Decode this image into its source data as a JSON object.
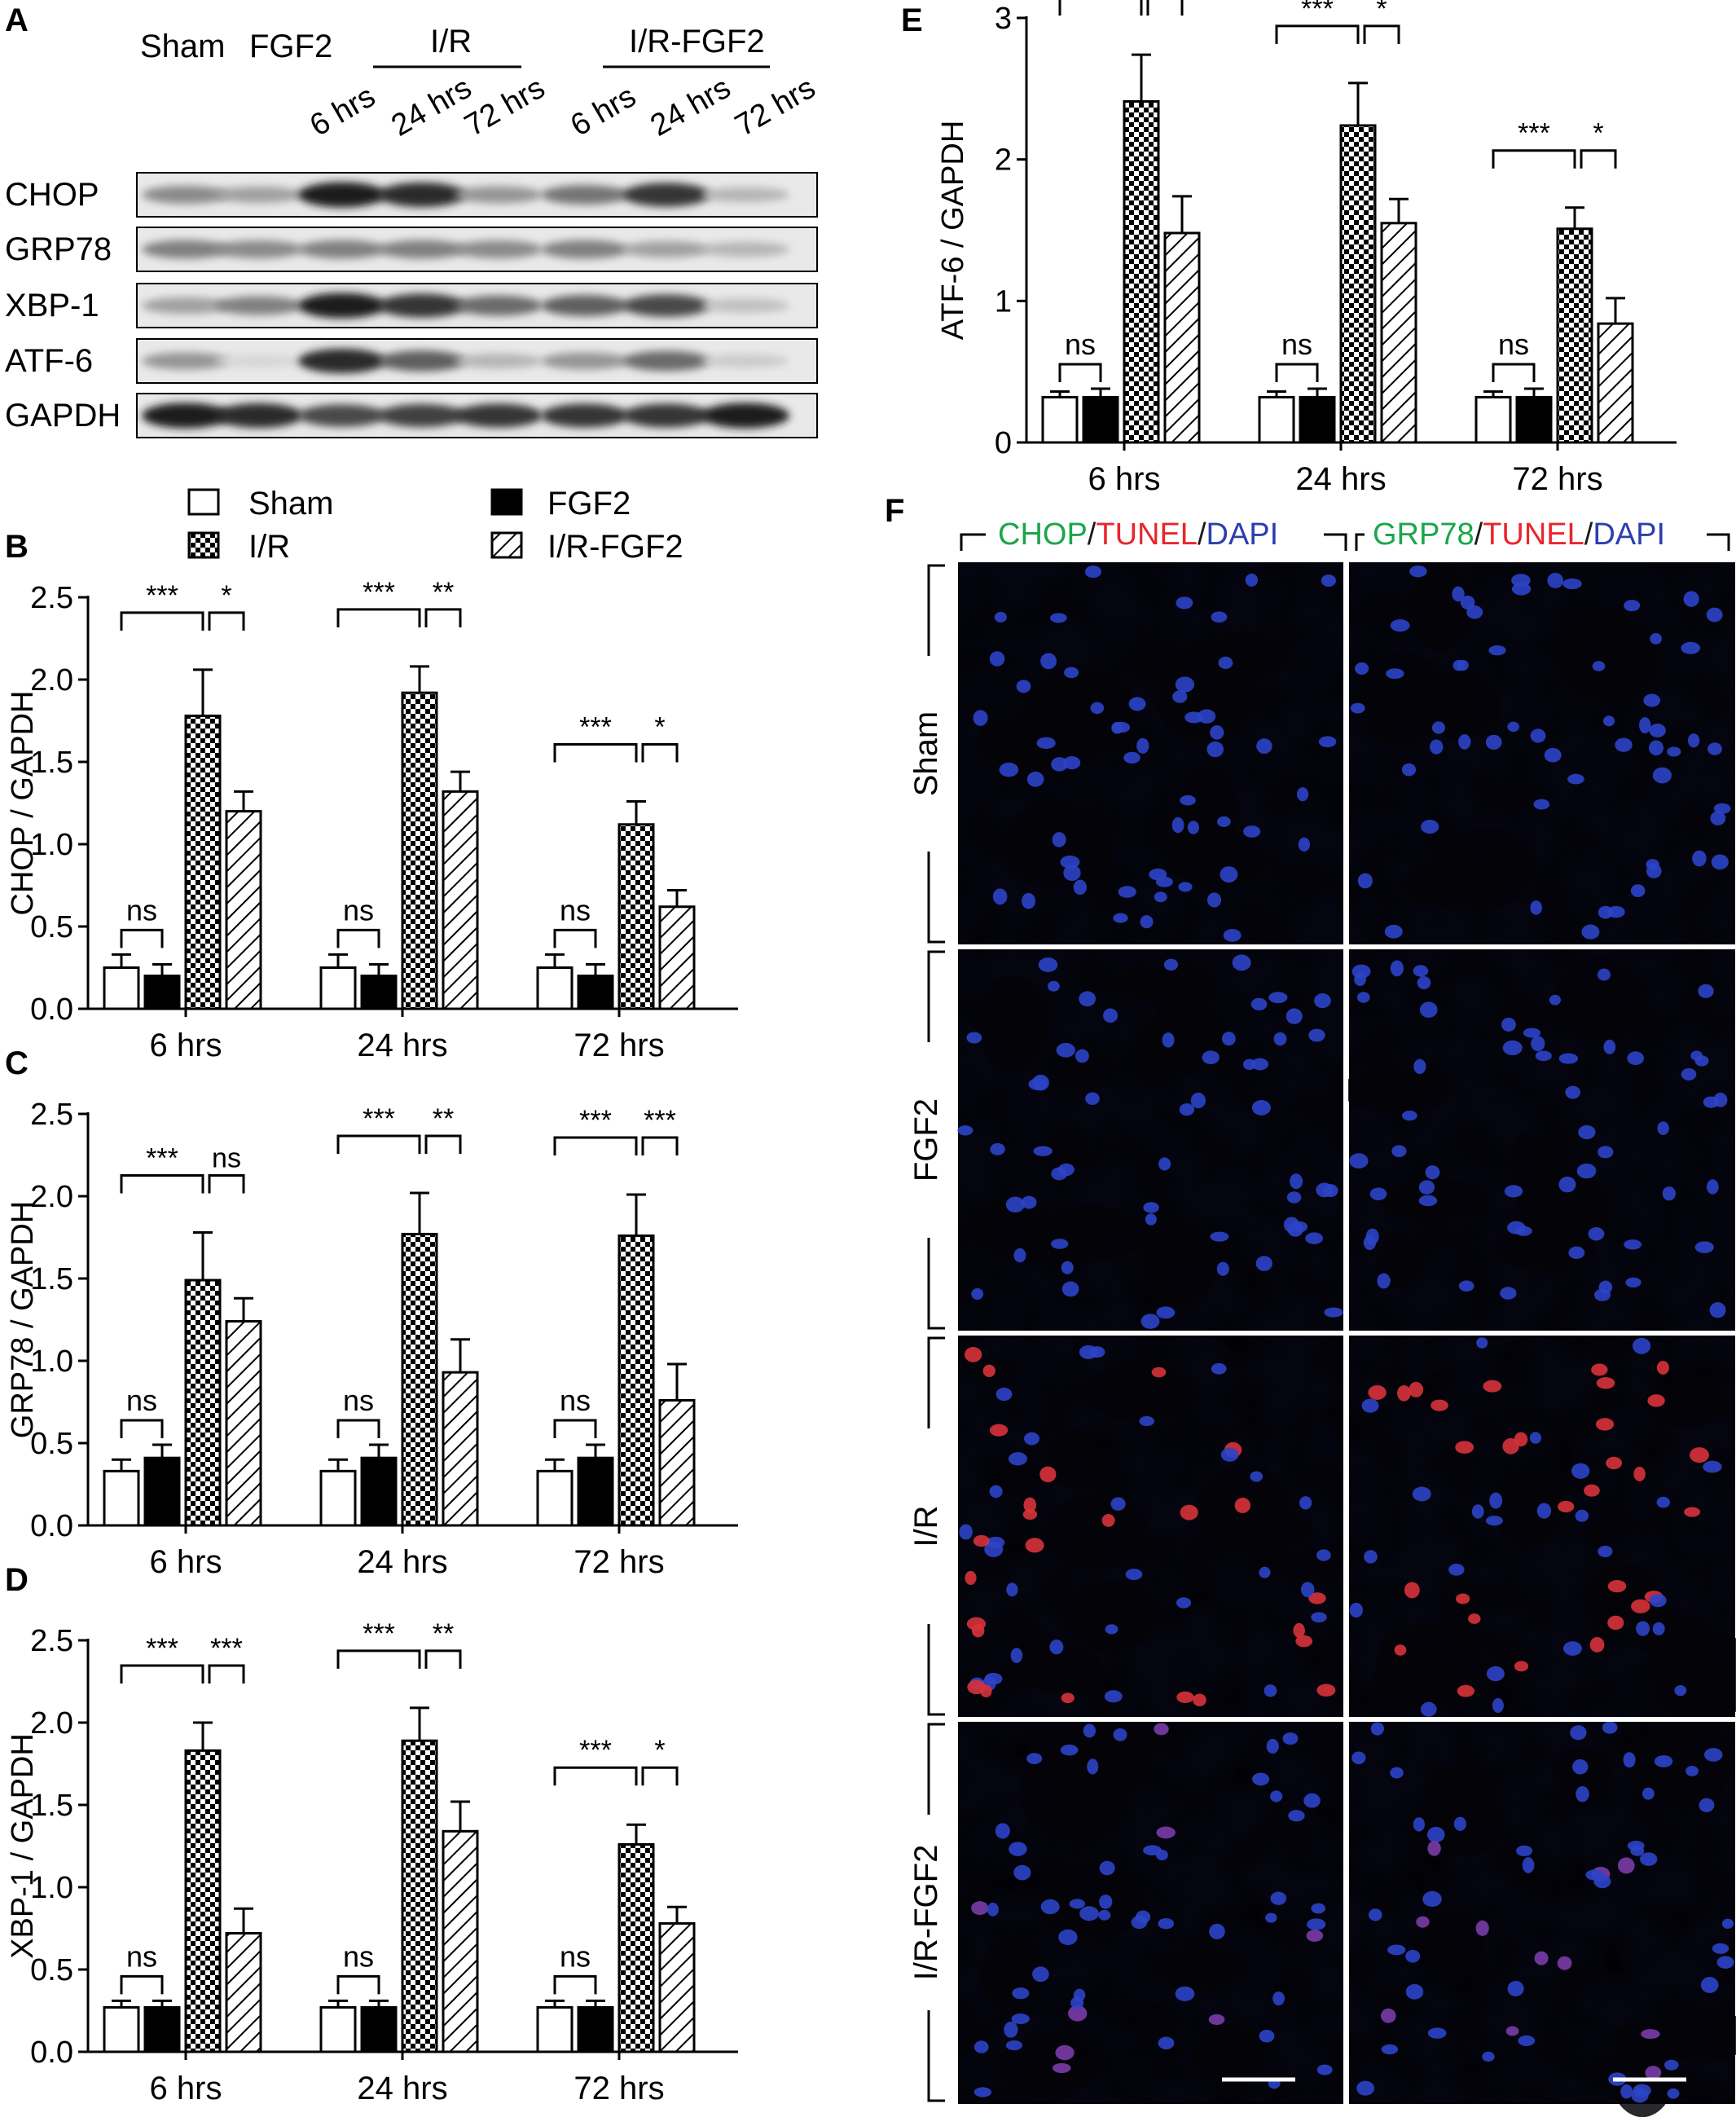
{
  "panel_a": {
    "letter": "A",
    "lane_labels_top": [
      "Sham",
      "FGF2"
    ],
    "group_labels": [
      "I/R",
      "I/R-FGF2"
    ],
    "time_labels": [
      "6 hrs",
      "24 hrs",
      "72 hrs",
      "6 hrs",
      "24 hrs",
      "72 hrs"
    ],
    "rows": [
      {
        "name": "CHOP",
        "intensity": [
          0.45,
          0.35,
          0.95,
          0.9,
          0.4,
          0.55,
          0.85,
          0.25
        ]
      },
      {
        "name": "GRP78",
        "intensity": [
          0.5,
          0.45,
          0.5,
          0.5,
          0.45,
          0.5,
          0.35,
          0.25
        ]
      },
      {
        "name": "XBP-1",
        "intensity": [
          0.35,
          0.5,
          0.95,
          0.85,
          0.6,
          0.65,
          0.75,
          0.2
        ]
      },
      {
        "name": "ATF-6",
        "intensity": [
          0.4,
          0.1,
          0.9,
          0.65,
          0.25,
          0.4,
          0.6,
          0.15
        ]
      },
      {
        "name": "GAPDH",
        "intensity": [
          0.95,
          0.9,
          0.75,
          0.8,
          0.85,
          0.85,
          0.85,
          0.95
        ]
      }
    ]
  },
  "legend": {
    "items": [
      {
        "label": "Sham",
        "pattern": "white"
      },
      {
        "label": "I/R",
        "pattern": "checker"
      },
      {
        "label": "FGF2",
        "pattern": "black"
      },
      {
        "label": "I/R-FGF2",
        "pattern": "hatch"
      }
    ]
  },
  "chart_data": [
    {
      "panel": "B",
      "type": "bar",
      "ylabel": "CHOP / GAPDH",
      "ylim": [
        0,
        2.5
      ],
      "yticks": [
        "0.0",
        "0.5",
        "1.0",
        "1.5",
        "2.0",
        "2.5"
      ],
      "categories": [
        "6 hrs",
        "24 hrs",
        "72 hrs"
      ],
      "series": [
        {
          "name": "Sham",
          "values": [
            0.25,
            0.25,
            0.25
          ],
          "err": [
            0.08,
            0.08,
            0.08
          ]
        },
        {
          "name": "FGF2",
          "values": [
            0.2,
            0.2,
            0.2
          ],
          "err": [
            0.07,
            0.07,
            0.07
          ]
        },
        {
          "name": "I/R",
          "values": [
            1.78,
            1.92,
            1.12
          ],
          "err": [
            0.28,
            0.16,
            0.14
          ]
        },
        {
          "name": "I/R-FGF2",
          "values": [
            1.2,
            1.32,
            0.62
          ],
          "err": [
            0.12,
            0.12,
            0.1
          ]
        }
      ],
      "significance": [
        [
          "ns",
          "***",
          "*"
        ],
        [
          "ns",
          "***",
          "**"
        ],
        [
          "ns",
          "***",
          "*"
        ]
      ]
    },
    {
      "panel": "C",
      "type": "bar",
      "ylabel": "GRP78 / GAPDH",
      "ylim": [
        0,
        2.5
      ],
      "yticks": [
        "0.0",
        "0.5",
        "1.0",
        "1.5",
        "2.0",
        "2.5"
      ],
      "categories": [
        "6 hrs",
        "24 hrs",
        "72 hrs"
      ],
      "series": [
        {
          "name": "Sham",
          "values": [
            0.33,
            0.33,
            0.33
          ],
          "err": [
            0.07,
            0.07,
            0.07
          ]
        },
        {
          "name": "FGF2",
          "values": [
            0.41,
            0.41,
            0.41
          ],
          "err": [
            0.08,
            0.08,
            0.08
          ]
        },
        {
          "name": "I/R",
          "values": [
            1.49,
            1.77,
            1.76
          ],
          "err": [
            0.29,
            0.25,
            0.25
          ]
        },
        {
          "name": "I/R-FGF2",
          "values": [
            1.24,
            0.93,
            0.76
          ],
          "err": [
            0.14,
            0.2,
            0.22
          ]
        }
      ],
      "significance": [
        [
          "ns",
          "***",
          "ns"
        ],
        [
          "ns",
          "***",
          "**"
        ],
        [
          "ns",
          "***",
          "***"
        ]
      ]
    },
    {
      "panel": "D",
      "type": "bar",
      "ylabel": "XBP-1 / GAPDH",
      "ylim": [
        0,
        2.5
      ],
      "yticks": [
        "0.0",
        "0.5",
        "1.0",
        "1.5",
        "2.0",
        "2.5"
      ],
      "categories": [
        "6 hrs",
        "24 hrs",
        "72 hrs"
      ],
      "series": [
        {
          "name": "Sham",
          "values": [
            0.27,
            0.27,
            0.27
          ],
          "err": [
            0.04,
            0.04,
            0.04
          ]
        },
        {
          "name": "FGF2",
          "values": [
            0.27,
            0.27,
            0.27
          ],
          "err": [
            0.04,
            0.04,
            0.04
          ]
        },
        {
          "name": "I/R",
          "values": [
            1.83,
            1.89,
            1.26
          ],
          "err": [
            0.17,
            0.2,
            0.12
          ]
        },
        {
          "name": "I/R-FGF2",
          "values": [
            0.72,
            1.34,
            0.78
          ],
          "err": [
            0.15,
            0.18,
            0.1
          ]
        }
      ],
      "significance": [
        [
          "ns",
          "***",
          "***"
        ],
        [
          "ns",
          "***",
          "**"
        ],
        [
          "ns",
          "***",
          "*"
        ]
      ]
    },
    {
      "panel": "E",
      "type": "bar",
      "ylabel": "ATF-6 / GAPDH",
      "ylim": [
        0,
        3
      ],
      "yticks": [
        "0",
        "1",
        "2",
        "3"
      ],
      "categories": [
        "6 hrs",
        "24 hrs",
        "72 hrs"
      ],
      "series": [
        {
          "name": "Sham",
          "values": [
            0.32,
            0.32,
            0.32
          ],
          "err": [
            0.04,
            0.04,
            0.04
          ]
        },
        {
          "name": "FGF2",
          "values": [
            0.32,
            0.32,
            0.32
          ],
          "err": [
            0.06,
            0.06,
            0.06
          ]
        },
        {
          "name": "I/R",
          "values": [
            2.41,
            2.24,
            1.51
          ],
          "err": [
            0.33,
            0.3,
            0.15
          ]
        },
        {
          "name": "I/R-FGF2",
          "values": [
            1.48,
            1.55,
            0.84
          ],
          "err": [
            0.26,
            0.17,
            0.18
          ]
        }
      ],
      "significance": [
        [
          "ns",
          "***",
          "**"
        ],
        [
          "ns",
          "***",
          "*"
        ],
        [
          "ns",
          "***",
          "*"
        ]
      ]
    }
  ],
  "panel_f": {
    "letter": "F",
    "column_titles": [
      {
        "parts": [
          "CHOP",
          "/",
          "TUNEL",
          "/",
          "DAPI"
        ]
      },
      {
        "parts": [
          "GRP78",
          "/",
          "TUNEL",
          "/",
          "DAPI"
        ]
      }
    ],
    "row_labels": [
      "Sham",
      "FGF2",
      "I/R",
      "I/R-FGF2"
    ],
    "colors": {
      "green": "#1aa64a",
      "red": "#e8262c",
      "blue": "#2b3fae",
      "dark": "#1a1a1a"
    }
  }
}
